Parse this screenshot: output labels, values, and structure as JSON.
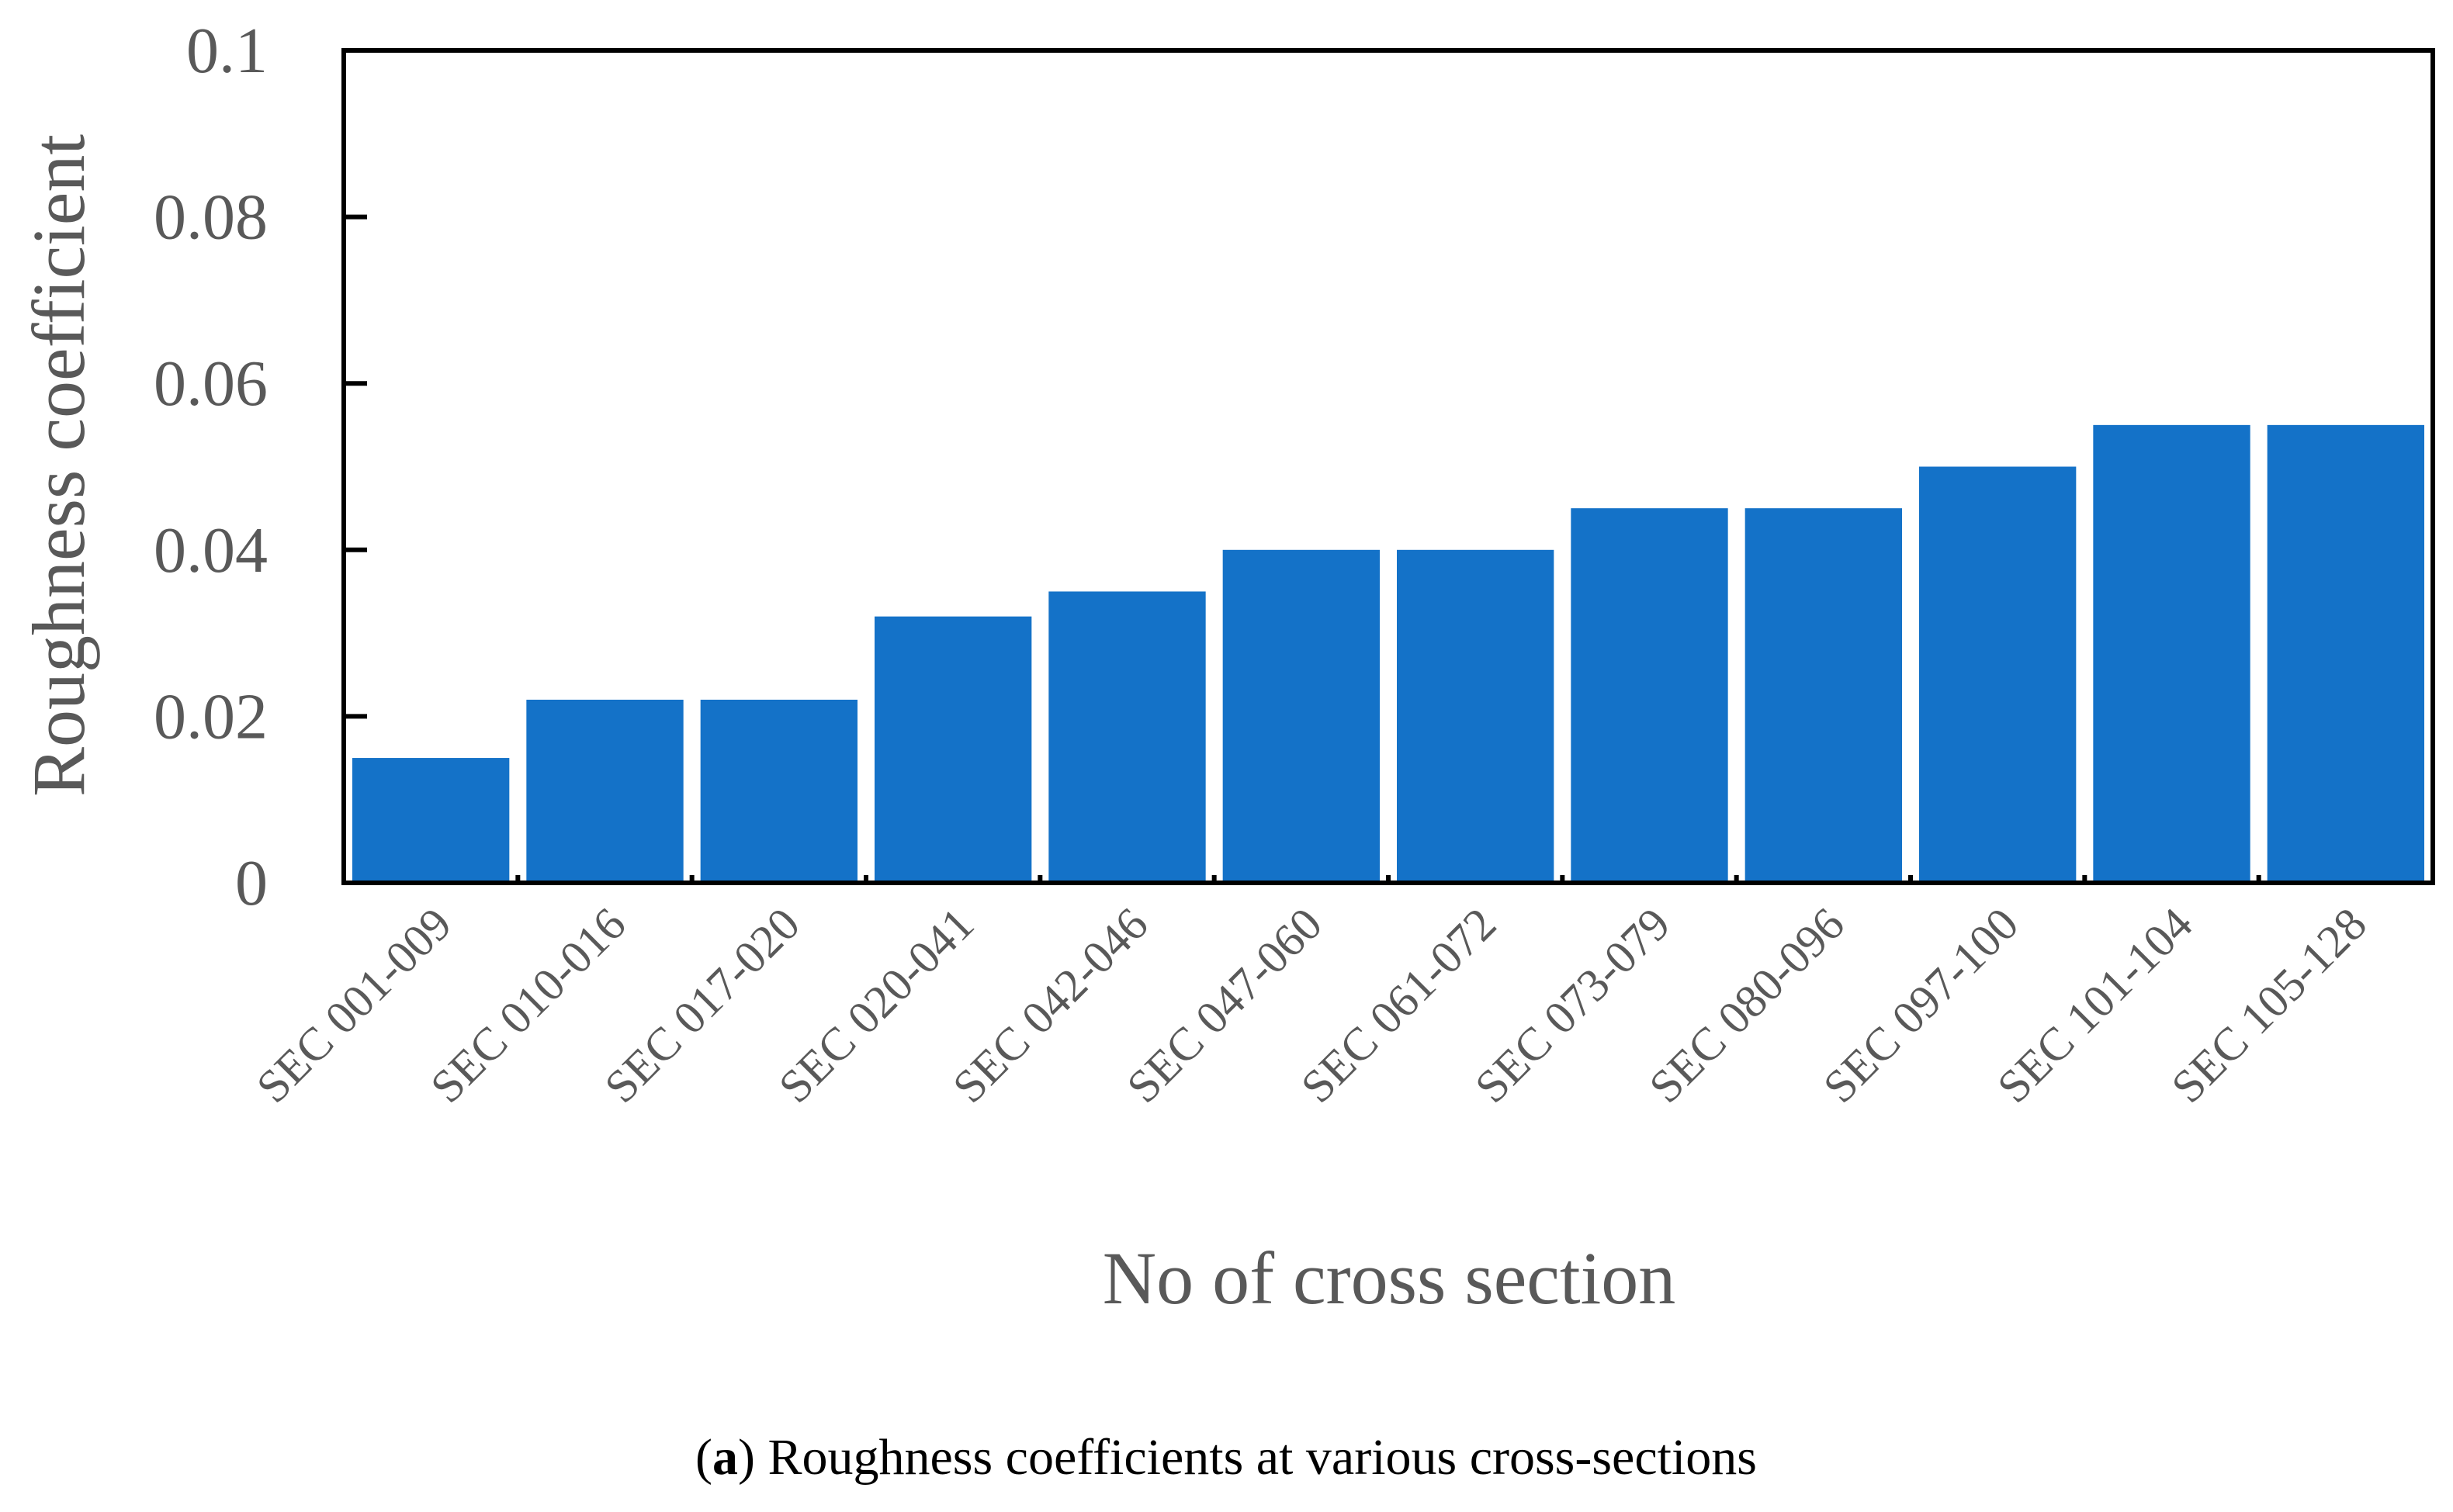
{
  "chart_data": {
    "type": "bar",
    "title": "",
    "xlabel": "No of cross section",
    "ylabel": "Roughness coefficient",
    "ylim": [
      0,
      0.1
    ],
    "yticks": [
      "0",
      "0.02",
      "0.04",
      "0.06",
      "0.08",
      "0.1"
    ],
    "grid": false,
    "categories": [
      "SEC 001-009",
      "SEC 010-016",
      "SEC 017-020",
      "SEC 020-041",
      "SEC 042-046",
      "SEC 047-060",
      "SEC 061-072",
      "SEC 073-079",
      "SEC 080-096",
      "SEC 097-100",
      "SEC 101-104",
      "SEC 105-128"
    ],
    "values": [
      0.015,
      0.022,
      0.022,
      0.032,
      0.035,
      0.04,
      0.04,
      0.045,
      0.045,
      0.05,
      0.055,
      0.055
    ],
    "bar_color": "#1472C8"
  },
  "caption": {
    "label": "a",
    "text": " Roughness coefficients at various cross-sections"
  }
}
